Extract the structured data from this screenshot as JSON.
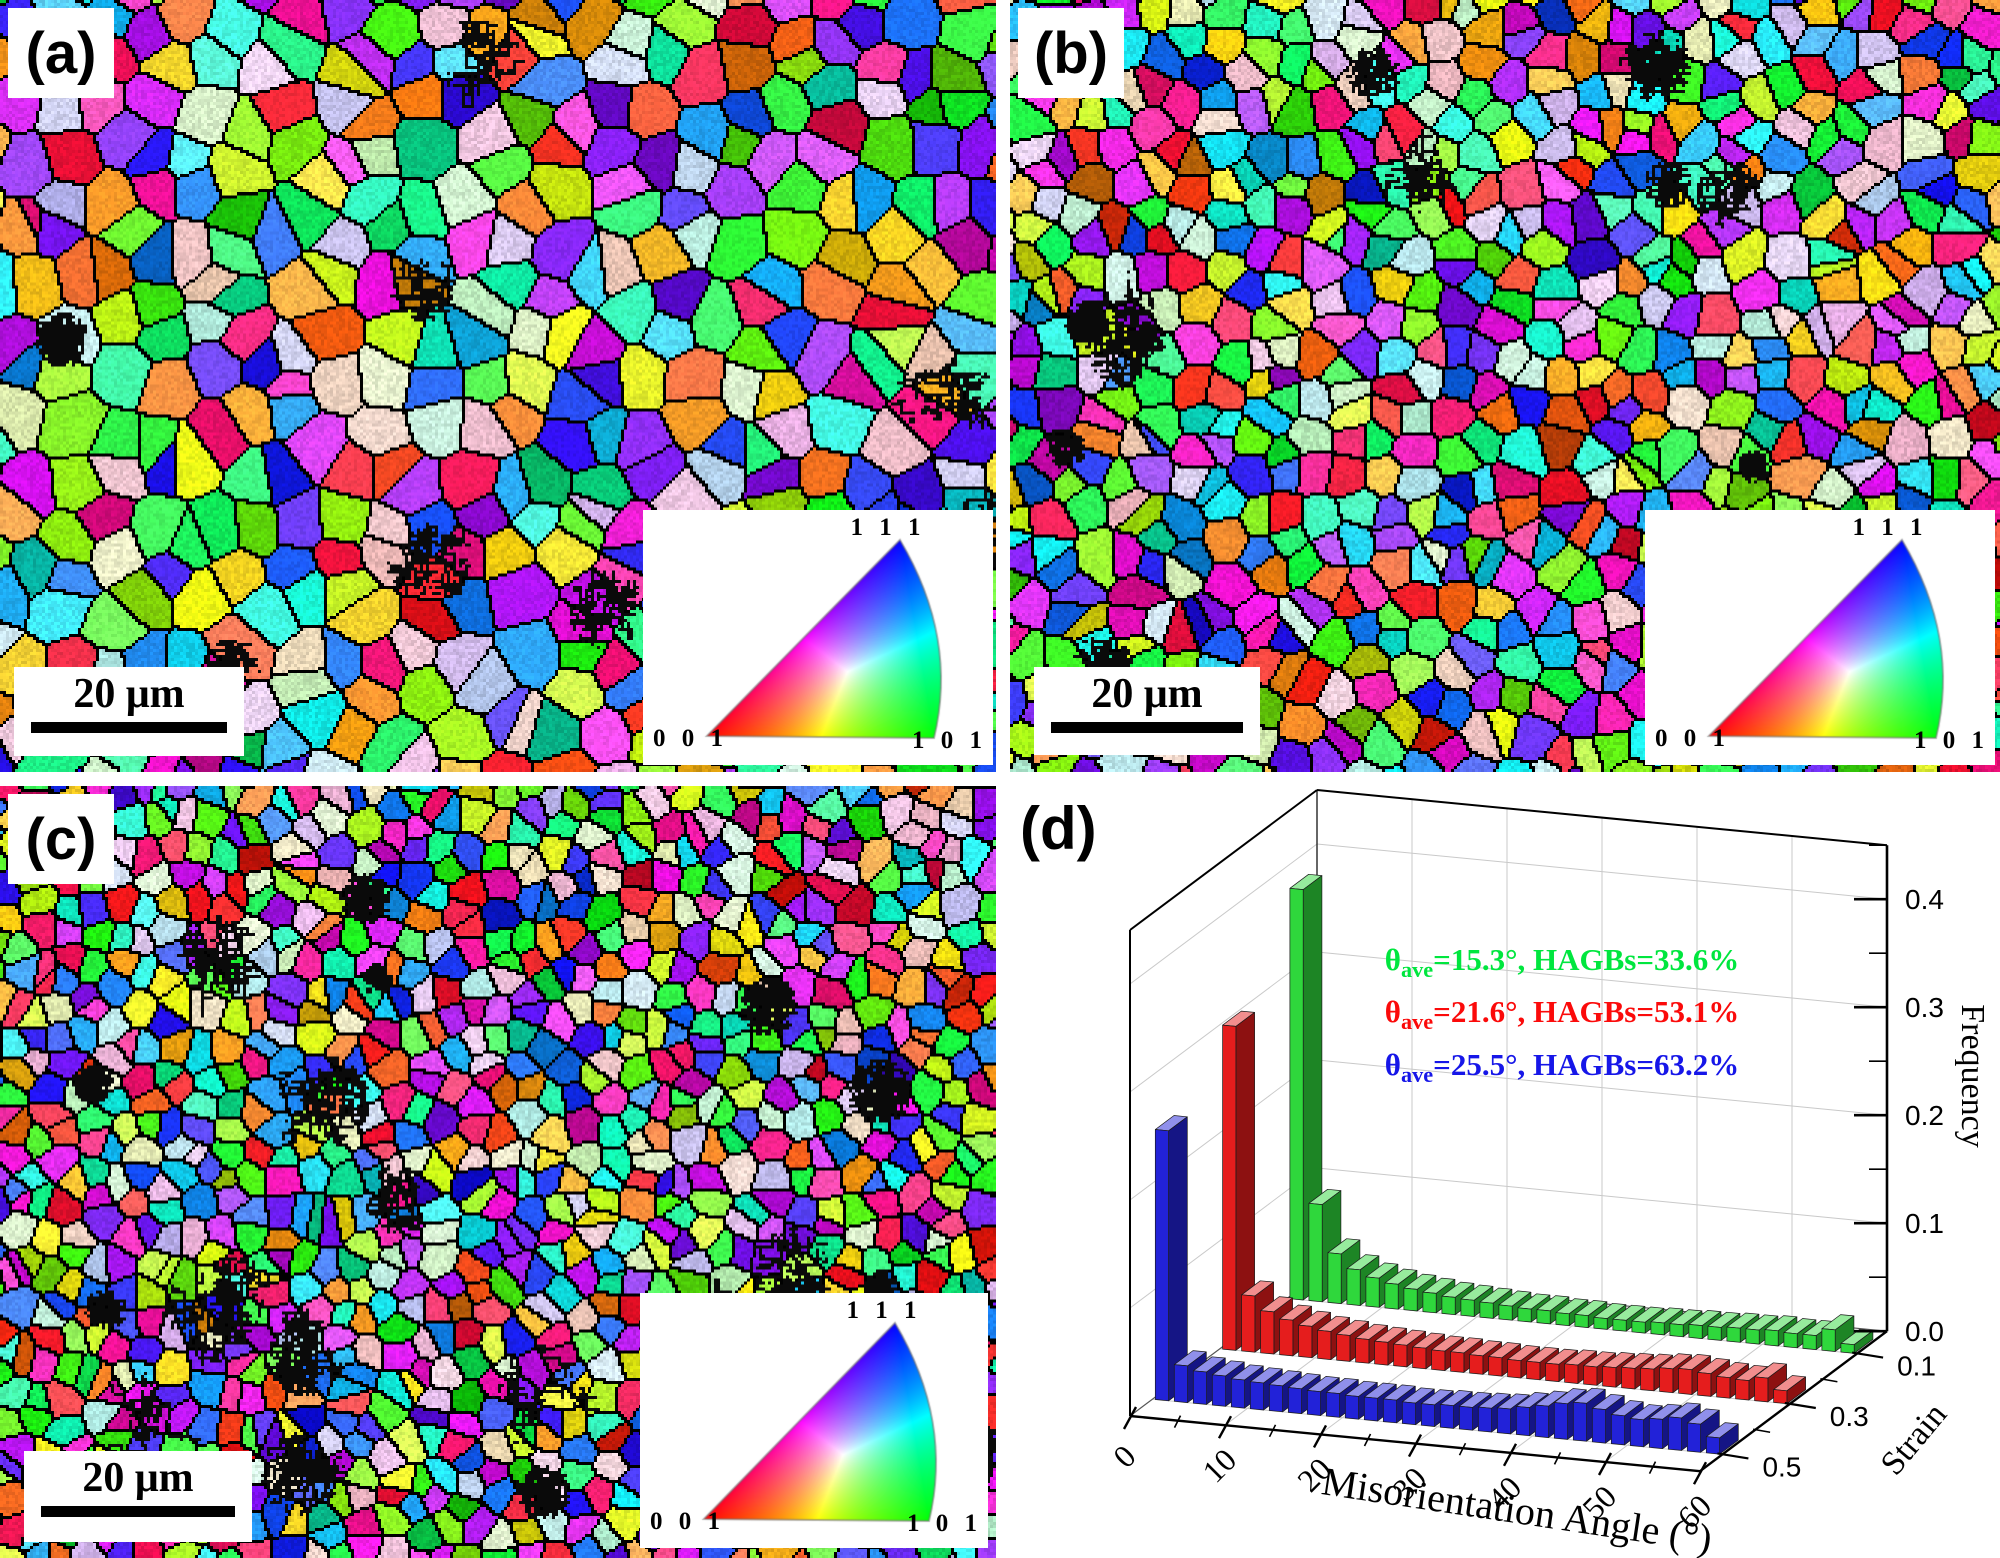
{
  "figure": {
    "background": "#ffffff",
    "panels": [
      {
        "id": "a",
        "label": "(a)",
        "scale_bar_label": "20 μm",
        "ipf_legend": {
          "top": "1 1 1",
          "bottom_left": "0 0 1",
          "bottom_right": "1 0 1"
        }
      },
      {
        "id": "b",
        "label": "(b)",
        "scale_bar_label": "20 μm",
        "ipf_legend": {
          "top": "1 1 1",
          "bottom_left": "0 0 1",
          "bottom_right": "1 0 1"
        }
      },
      {
        "id": "c",
        "label": "(c)",
        "scale_bar_label": "20 μm",
        "ipf_legend": {
          "top": "1 1 1",
          "bottom_left": "0 0 1",
          "bottom_right": "1 0 1"
        }
      },
      {
        "id": "d",
        "label": "(d)"
      }
    ]
  },
  "chart_data": {
    "type": "bar",
    "projection": "3d-histogram",
    "xlabel": "Misorientation Angle (°)",
    "x_ticks": [
      "0",
      "10",
      "20",
      "30",
      "40",
      "50",
      "60"
    ],
    "x_range": [
      0,
      60
    ],
    "bin_width_deg": 2,
    "ylabel": "Strain",
    "y_ticks": [
      "0.1",
      "0.3",
      "0.5"
    ],
    "zlabel": "Frequency",
    "z_ticks": [
      "0.0",
      "0.1",
      "0.2",
      "0.3",
      "0.4"
    ],
    "z_range": [
      0,
      0.45
    ],
    "grid": true,
    "series": [
      {
        "name": "strain 0.1",
        "strain": 0.1,
        "color": "#2fd73c",
        "annotation": {
          "theta": "θ",
          "sub": "ave",
          "rest": "=15.3°, HAGBs=33.6%",
          "color": "#00e63e"
        },
        "values": [
          0.38,
          0.09,
          0.046,
          0.033,
          0.027,
          0.023,
          0.02,
          0.018,
          0.016,
          0.015,
          0.014,
          0.013,
          0.012,
          0.012,
          0.011,
          0.011,
          0.01,
          0.01,
          0.01,
          0.011,
          0.011,
          0.012,
          0.012,
          0.013,
          0.013,
          0.014,
          0.013,
          0.013,
          0.02,
          0.008
        ]
      },
      {
        "name": "strain 0.3",
        "strain": 0.3,
        "color": "#e51d1d",
        "annotation": {
          "theta": "θ",
          "sub": "ave",
          "rest": "=21.6°, HAGBs=53.1%",
          "color": "#fb0a0a"
        },
        "values": [
          0.3,
          0.052,
          0.039,
          0.033,
          0.029,
          0.026,
          0.024,
          0.022,
          0.021,
          0.02,
          0.019,
          0.018,
          0.018,
          0.017,
          0.017,
          0.016,
          0.016,
          0.016,
          0.017,
          0.017,
          0.018,
          0.019,
          0.02,
          0.022,
          0.023,
          0.021,
          0.019,
          0.018,
          0.022,
          0.012
        ]
      },
      {
        "name": "strain 0.5",
        "strain": 0.5,
        "color": "#2222d8",
        "annotation": {
          "theta": "θ",
          "sub": "ave",
          "rest": "=25.5°, HAGBs=63.2%",
          "color": "#1616e8"
        },
        "values": [
          0.25,
          0.034,
          0.03,
          0.028,
          0.026,
          0.025,
          0.024,
          0.023,
          0.022,
          0.022,
          0.021,
          0.021,
          0.021,
          0.02,
          0.02,
          0.021,
          0.021,
          0.022,
          0.023,
          0.026,
          0.029,
          0.033,
          0.035,
          0.031,
          0.027,
          0.025,
          0.027,
          0.03,
          0.026,
          0.015
        ]
      }
    ]
  }
}
